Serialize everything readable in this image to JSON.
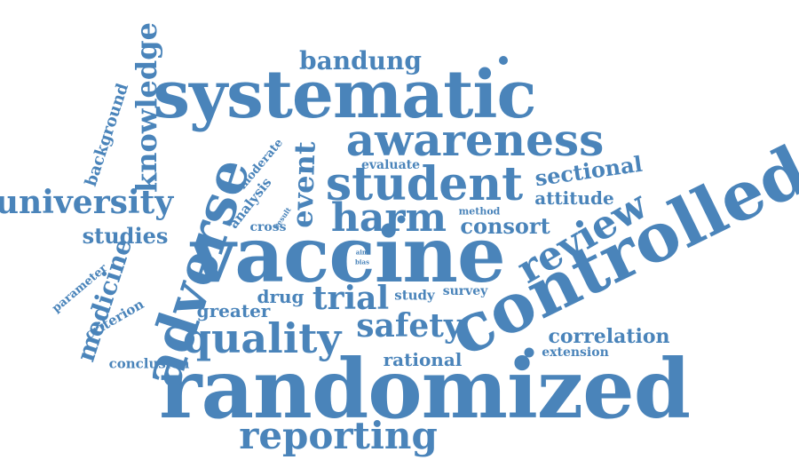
{
  "words": {
    "randomized": "randomized",
    "vaccine": "vaccine",
    "systematic": "systematic",
    "controlled": "controlled",
    "adverse": "adverse",
    "awareness": "awareness",
    "student": "student",
    "harm": "harm",
    "quality": "quality",
    "reporting": "reporting",
    "review": "review",
    "university": "university",
    "knowledge": "knowledge",
    "safety": "safety",
    "trial": "trial",
    "event": "event",
    "medicine": "medicine",
    "bandung": "bandung",
    "sectional": "sectional",
    "consort": "consort",
    "correlation": "correlation",
    "attitude": "attitude",
    "studies": "studies",
    "rational": "rational",
    "greater": "greater",
    "drug": "drug",
    "background": "background",
    "analysis": "analysis",
    "conclusion": "conclusion",
    "criterion": "criterion",
    "study": "study",
    "survey": "survey",
    "evaluate": "evaluate",
    "cross": "cross",
    "moderate": "moderate",
    "parameter": "parameter",
    "extension": "extension",
    "method": "method",
    "result": "result",
    "aim": "aim",
    "bias": "bias"
  },
  "colors": {
    "word": "#4a84ba",
    "background": "#ffffff"
  }
}
